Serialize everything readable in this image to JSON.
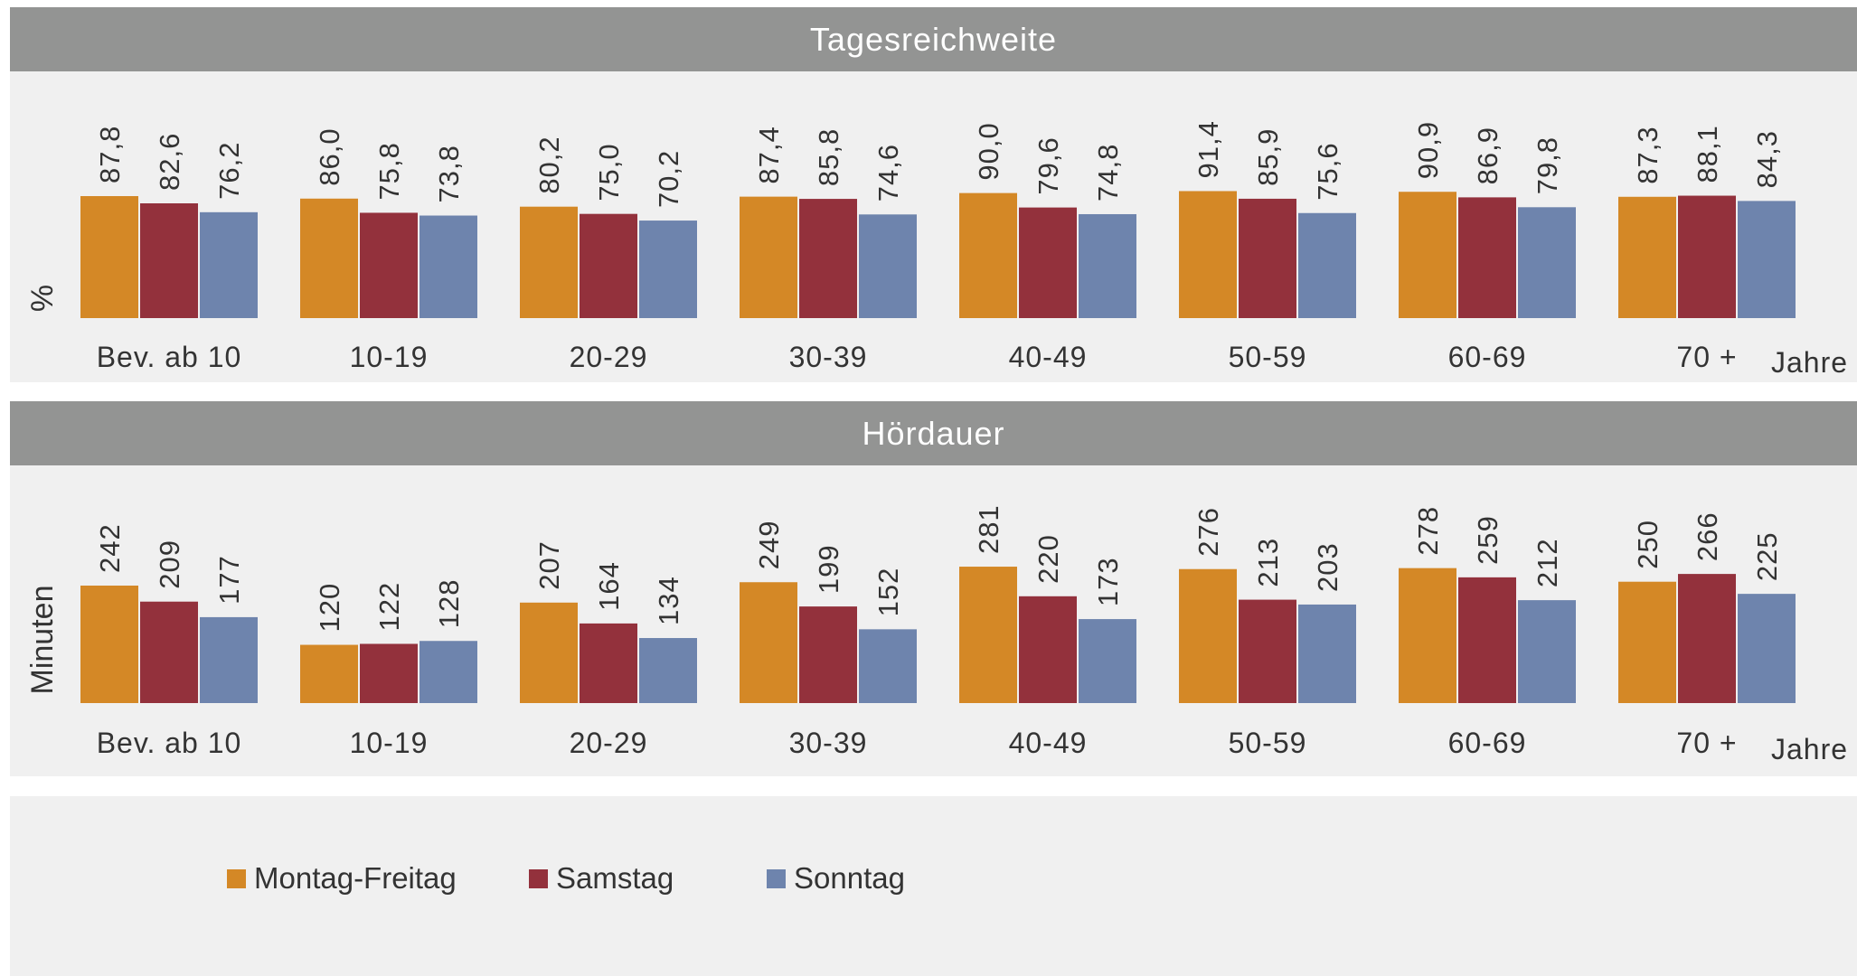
{
  "colors": {
    "Montag-Freitag": "#d48826",
    "Samstag": "#93313c",
    "Sonntag": "#6e84ad"
  },
  "chart_data": [
    {
      "type": "bar",
      "title": "Tagesreichweite",
      "ylabel": "%",
      "unit_label": "Jahre",
      "categories": [
        "Bev. ab 10",
        "10-19",
        "20-29",
        "30-39",
        "40-49",
        "50-59",
        "60-69",
        "70 +"
      ],
      "series": [
        {
          "name": "Montag-Freitag",
          "values": [
            87.8,
            86.0,
            80.2,
            87.4,
            90.0,
            91.4,
            90.9,
            87.3
          ],
          "labels": [
            "87,8",
            "86,0",
            "80,2",
            "87,4",
            "90,0",
            "91,4",
            "90,9",
            "87,3"
          ]
        },
        {
          "name": "Samstag",
          "values": [
            82.6,
            75.8,
            75.0,
            85.8,
            79.6,
            85.9,
            86.9,
            88.1
          ],
          "labels": [
            "82,6",
            "75,8",
            "75,0",
            "85,8",
            "79,6",
            "85,9",
            "86,9",
            "88,1"
          ]
        },
        {
          "name": "Sonntag",
          "values": [
            76.2,
            73.8,
            70.2,
            74.6,
            74.8,
            75.6,
            79.8,
            84.3
          ],
          "labels": [
            "76,2",
            "73,8",
            "70,2",
            "74,6",
            "74,8",
            "75,6",
            "79,8",
            "84,3"
          ]
        }
      ],
      "ylim": [
        0,
        100
      ]
    },
    {
      "type": "bar",
      "title": "Hördauer",
      "ylabel": "Minuten",
      "unit_label": "Jahre",
      "categories": [
        "Bev. ab 10",
        "10-19",
        "20-29",
        "30-39",
        "40-49",
        "50-59",
        "60-69",
        "70 +"
      ],
      "series": [
        {
          "name": "Montag-Freitag",
          "values": [
            242,
            120,
            207,
            249,
            281,
            276,
            278,
            250
          ],
          "labels": [
            "242",
            "120",
            "207",
            "249",
            "281",
            "276",
            "278",
            "250"
          ]
        },
        {
          "name": "Samstag",
          "values": [
            209,
            122,
            164,
            199,
            220,
            213,
            259,
            266
          ],
          "labels": [
            "209",
            "122",
            "164",
            "199",
            "220",
            "213",
            "259",
            "266"
          ]
        },
        {
          "name": "Sonntag",
          "values": [
            177,
            128,
            134,
            152,
            173,
            203,
            212,
            225
          ],
          "labels": [
            "177",
            "128",
            "134",
            "152",
            "173",
            "203",
            "212",
            "225"
          ]
        }
      ],
      "ylim": [
        0,
        472
      ]
    }
  ],
  "legend": [
    "Montag-Freitag",
    "Samstag",
    "Sonntag"
  ]
}
